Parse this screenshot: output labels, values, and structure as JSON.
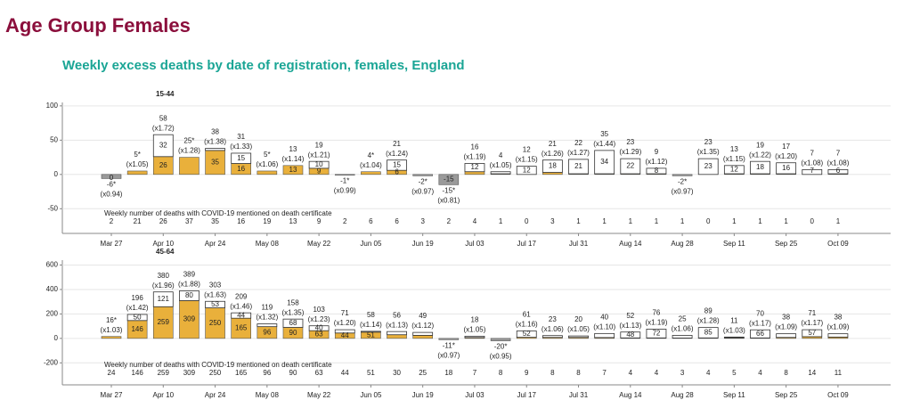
{
  "header": {
    "title": "Age Group Females",
    "subtitle": "Weekly excess deaths by date of registration, females, England"
  },
  "chart_data": [
    {
      "type": "excess-bar",
      "label": "15-44",
      "categories": [
        "Mar 27",
        null,
        "Apr 10",
        null,
        "Apr 24",
        null,
        "May 08",
        null,
        "May 22",
        null,
        "Jun 05",
        null,
        "Jun 19",
        null,
        "Jul 03",
        null,
        "Jul 17",
        null,
        "Jul 31",
        null,
        "Aug 14",
        null,
        "Aug 28",
        null,
        "Sep 11",
        null,
        "Sep 25",
        null,
        "Oct 09"
      ],
      "excess": [
        -6,
        5,
        58,
        25,
        38,
        31,
        5,
        13,
        19,
        -1,
        4,
        21,
        -2,
        -15,
        16,
        4,
        12,
        21,
        22,
        35,
        23,
        9,
        -2,
        23,
        13,
        19,
        17,
        7,
        7
      ],
      "excess_labels": [
        "-6*",
        "5*",
        "58",
        "25*",
        "38",
        "31",
        "5*",
        "13",
        "19",
        "-1*",
        "4*",
        "21",
        "-2*",
        "-15*",
        "16",
        "4",
        "12",
        "21",
        "22",
        "35",
        "23",
        "9",
        "-2*",
        "23",
        "13",
        "19",
        "17",
        "7",
        "7"
      ],
      "ratio_labels": [
        "(x0.94)",
        "(x1.05)",
        "(x1.72)",
        "(x1.28)",
        "(x1.38)",
        "(x1.33)",
        "(x1.06)",
        "(x1.14)",
        "(x1.21)",
        "(x0.99)",
        "(x1.04)",
        "(x1.24)",
        "(x0.97)",
        "(x0.81)",
        "(x1.19)",
        "(x1.05)",
        "(x1.15)",
        "(x1.26)",
        "(x1.27)",
        "(x1.44)",
        "(x1.29)",
        "(x1.12)",
        "(x0.97)",
        "(x1.35)",
        "(x1.15)",
        "(x1.22)",
        "(x1.20)",
        "(x1.08)",
        "(x1.08)"
      ],
      "covid_segment": [
        null,
        5,
        26,
        25,
        35,
        16,
        5,
        13,
        9,
        null,
        4,
        6,
        null,
        null,
        4,
        1,
        0,
        3,
        1,
        1,
        1,
        1,
        null,
        0,
        1,
        1,
        1,
        0,
        1
      ],
      "other_segment": [
        null,
        0,
        32,
        0,
        3,
        15,
        0,
        0,
        10,
        null,
        0,
        15,
        null,
        null,
        12,
        3,
        12,
        18,
        21,
        34,
        22,
        8,
        null,
        23,
        12,
        18,
        16,
        7,
        6
      ],
      "covid_segment_labels": [
        0,
        null,
        26,
        null,
        35,
        16,
        null,
        13,
        9,
        null,
        null,
        6,
        null,
        -15,
        null,
        null,
        null,
        null,
        null,
        null,
        null,
        null,
        null,
        null,
        null,
        null,
        null,
        null,
        null
      ],
      "other_segment_labels": [
        null,
        null,
        32,
        null,
        null,
        15,
        null,
        null,
        10,
        null,
        null,
        15,
        null,
        null,
        12,
        null,
        12,
        18,
        21,
        34,
        22,
        8,
        null,
        23,
        12,
        18,
        16,
        7,
        6
      ],
      "covid_counts": [
        2,
        21,
        26,
        37,
        35,
        16,
        19,
        13,
        9,
        2,
        6,
        6,
        3,
        2,
        4,
        1,
        0,
        3,
        1,
        1,
        1,
        1,
        1,
        0,
        1,
        1,
        1,
        0,
        1
      ],
      "note": "Weekly number of deaths with COVID-19 mentioned on death certificate",
      "ylim": [
        -86,
        105
      ],
      "yticks": [
        -50,
        0,
        50,
        100
      ],
      "covid_color": "#e9b03b",
      "other_color": "#ffffff",
      "negative_color": "#9a9a9a"
    },
    {
      "type": "excess-bar",
      "label": "45-64",
      "categories": [
        "Mar 27",
        null,
        "Apr 10",
        null,
        "Apr 24",
        null,
        "May 08",
        null,
        "May 22",
        null,
        "Jun 05",
        null,
        "Jun 19",
        null,
        "Jul 03",
        null,
        "Jul 17",
        null,
        "Jul 31",
        null,
        "Aug 14",
        null,
        "Aug 28",
        null,
        "Sep 11",
        null,
        "Sep 25",
        null,
        "Oct 09"
      ],
      "excess": [
        16,
        196,
        380,
        389,
        303,
        209,
        119,
        158,
        103,
        71,
        58,
        56,
        49,
        -11,
        18,
        -20,
        61,
        23,
        20,
        40,
        52,
        76,
        25,
        89,
        11,
        70,
        38,
        71,
        38
      ],
      "excess_labels": [
        "16*",
        "196",
        "380",
        "389",
        "303",
        "209",
        "119",
        "158",
        "103",
        "71",
        "58",
        "56",
        "49",
        "-11*",
        "18",
        "-20*",
        "61",
        "23",
        "20",
        "40",
        "52",
        "76",
        "25",
        "89",
        "11",
        "70",
        "38",
        "71",
        "38"
      ],
      "ratio_labels": [
        "(x1.03)",
        "(x1.42)",
        "(x1.96)",
        "(x1.88)",
        "(x1.63)",
        "(x1.46)",
        "(x1.32)",
        "(x1.35)",
        "(x1.23)",
        "(x1.20)",
        "(x1.14)",
        "(x1.13)",
        "(x1.12)",
        "(x0.97)",
        "(x1.05)",
        "(x0.95)",
        "(x1.16)",
        "(x1.06)",
        "(x1.05)",
        "(x1.10)",
        "(x1.13)",
        "(x1.19)",
        "(x1.06)",
        "(x1.28)",
        "(x1.03)",
        "(x1.17)",
        "(x1.09)",
        "(x1.17)",
        "(x1.09)"
      ],
      "covid_segment": [
        16,
        146,
        259,
        309,
        250,
        165,
        96,
        90,
        63,
        44,
        51,
        30,
        25,
        null,
        7,
        null,
        9,
        8,
        8,
        7,
        4,
        4,
        3,
        4,
        5,
        4,
        8,
        14,
        11
      ],
      "other_segment": [
        0,
        50,
        121,
        80,
        53,
        44,
        23,
        68,
        40,
        27,
        7,
        26,
        24,
        null,
        11,
        null,
        52,
        15,
        12,
        33,
        48,
        72,
        22,
        85,
        6,
        66,
        30,
        57,
        27
      ],
      "covid_segment_labels": [
        null,
        146,
        259,
        309,
        250,
        165,
        96,
        90,
        63,
        44,
        51,
        null,
        null,
        null,
        null,
        null,
        null,
        null,
        null,
        null,
        null,
        null,
        null,
        null,
        null,
        null,
        null,
        null,
        null
      ],
      "other_segment_labels": [
        null,
        50,
        121,
        80,
        53,
        44,
        null,
        68,
        40,
        null,
        null,
        null,
        null,
        null,
        null,
        null,
        52,
        null,
        null,
        null,
        48,
        72,
        null,
        85,
        null,
        66,
        null,
        57,
        null
      ],
      "covid_counts": [
        24,
        146,
        259,
        309,
        250,
        165,
        96,
        90,
        63,
        44,
        51,
        30,
        25,
        18,
        7,
        8,
        9,
        8,
        8,
        7,
        4,
        4,
        3,
        4,
        5,
        4,
        8,
        14,
        11
      ],
      "note": "Weekly number of deaths with COVID-19 mentioned on death certificate",
      "ylim": [
        -380,
        640
      ],
      "yticks": [
        -200,
        0,
        200,
        400,
        600
      ],
      "covid_color": "#e9b03b",
      "other_color": "#ffffff",
      "negative_color": "#9a9a9a"
    }
  ]
}
